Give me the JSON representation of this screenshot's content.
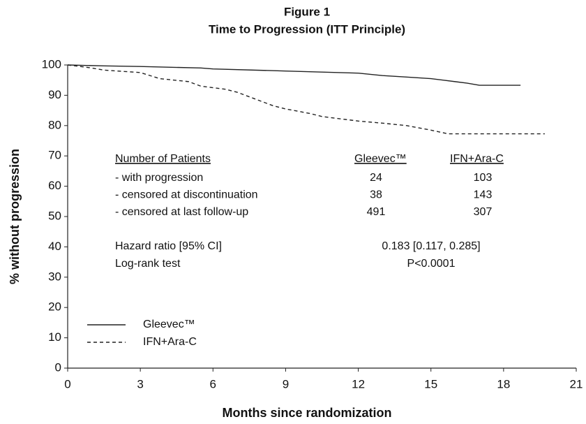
{
  "chart_data": {
    "type": "line",
    "title": "Figure 1",
    "subtitle": "Time to Progression (ITT Principle)",
    "x_label": "Months since randomization",
    "y_label": "% without progression",
    "xlim": [
      0,
      21
    ],
    "ylim": [
      0,
      100
    ],
    "xticks": [
      0,
      3,
      6,
      9,
      12,
      15,
      18,
      21
    ],
    "yticks": [
      0,
      10,
      20,
      30,
      40,
      50,
      60,
      70,
      80,
      90,
      100
    ],
    "series": [
      {
        "name": "Gleevec™",
        "color": "#222222",
        "dash": "solid",
        "x": [
          0,
          1.5,
          3,
          5.5,
          6,
          9,
          12,
          13,
          14,
          15,
          16,
          16.5,
          17,
          18.7
        ],
        "values": [
          100,
          99.7,
          99.5,
          99,
          98.7,
          98,
          97.3,
          96.5,
          96,
          95.5,
          94.5,
          94,
          93.3,
          93.3
        ]
      },
      {
        "name": "IFN+Ara-C",
        "color": "#222222",
        "dash": "dashed",
        "x": [
          0,
          1,
          1.5,
          3,
          3.8,
          5,
          5.5,
          6.5,
          7,
          7.5,
          8,
          8.5,
          9,
          10,
          10.5,
          11.5,
          12,
          13,
          14,
          15,
          15.7,
          19.7
        ],
        "values": [
          100,
          99,
          98.3,
          97.5,
          95.5,
          94.5,
          93,
          92,
          91,
          89.5,
          88,
          86.5,
          85.5,
          84,
          83,
          82,
          81.5,
          80.8,
          80,
          78.5,
          77.3,
          77.3
        ]
      }
    ],
    "annotations": {
      "header": [
        "Number of Patients",
        "Gleevec™",
        "IFN+Ara-C"
      ],
      "rows": [
        [
          "- with progression",
          24,
          103
        ],
        [
          "- censored at discontinuation",
          38,
          143
        ],
        [
          "- censored at last follow-up",
          491,
          307
        ]
      ],
      "stats": [
        [
          "Hazard ratio [95% CI]",
          "0.183 [0.117, 0.285]"
        ],
        [
          "Log-rank test",
          "P<0.0001"
        ]
      ]
    }
  }
}
